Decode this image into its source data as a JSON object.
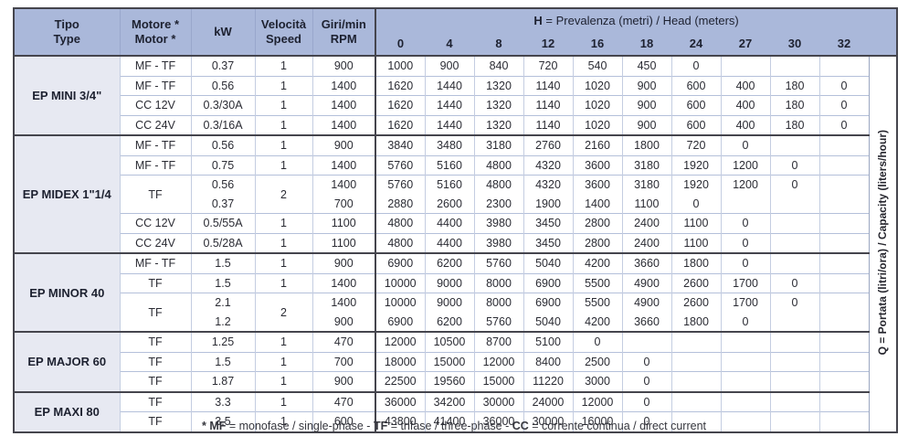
{
  "colors": {
    "header_blue": "#aab8da",
    "group_column_bg": "#e7e9f2",
    "grid_light": "#b4c0da",
    "grid_dark": "#45454d",
    "text": "#2b2c34"
  },
  "table": {
    "header": {
      "tipo": {
        "l1": "Tipo",
        "l2": "Type"
      },
      "motor": {
        "l1": "Motore *",
        "l2": "Motor *"
      },
      "kw": "kW",
      "speed": {
        "l1": "Velocità",
        "l2": "Speed"
      },
      "rpm": {
        "l1": "Giri/min",
        "l2": "RPM"
      },
      "h_bold": "H",
      "h_rest": " = Prevalenza (metri) / Head (meters)",
      "h_columns": [
        "0",
        "4",
        "8",
        "12",
        "16",
        "18",
        "24",
        "27",
        "30",
        "32"
      ]
    },
    "q_label": "Q = Portata (litri/ora) / Capacity (liters/hour)",
    "groups": [
      {
        "name": "EP MINI 3/4\"",
        "rows": [
          {
            "motor": "MF - TF",
            "kw": [
              "0.37"
            ],
            "speed": "1",
            "rpm": [
              "900"
            ],
            "h": [
              [
                "1000",
                "900",
                "840",
                "720",
                "540",
                "450",
                "0",
                "",
                "",
                ""
              ]
            ]
          },
          {
            "motor": "MF - TF",
            "kw": [
              "0.56"
            ],
            "speed": "1",
            "rpm": [
              "1400"
            ],
            "h": [
              [
                "1620",
                "1440",
                "1320",
                "1140",
                "1020",
                "900",
                "600",
                "400",
                "180",
                "0"
              ]
            ]
          },
          {
            "motor": "CC 12V",
            "kw": [
              "0.3/30A"
            ],
            "speed": "1",
            "rpm": [
              "1400"
            ],
            "h": [
              [
                "1620",
                "1440",
                "1320",
                "1140",
                "1020",
                "900",
                "600",
                "400",
                "180",
                "0"
              ]
            ]
          },
          {
            "motor": "CC 24V",
            "kw": [
              "0.3/16A"
            ],
            "speed": "1",
            "rpm": [
              "1400"
            ],
            "h": [
              [
                "1620",
                "1440",
                "1320",
                "1140",
                "1020",
                "900",
                "600",
                "400",
                "180",
                "0"
              ]
            ]
          }
        ]
      },
      {
        "name": "EP MIDEX 1\"1/4",
        "rows": [
          {
            "motor": "MF - TF",
            "kw": [
              "0.56"
            ],
            "speed": "1",
            "rpm": [
              "900"
            ],
            "h": [
              [
                "3840",
                "3480",
                "3180",
                "2760",
                "2160",
                "1800",
                "720",
                "0",
                "",
                ""
              ]
            ]
          },
          {
            "motor": "MF - TF",
            "kw": [
              "0.75"
            ],
            "speed": "1",
            "rpm": [
              "1400"
            ],
            "h": [
              [
                "5760",
                "5160",
                "4800",
                "4320",
                "3600",
                "3180",
                "1920",
                "1200",
                "0",
                ""
              ]
            ]
          },
          {
            "motor": "TF",
            "kw": [
              "0.56",
              "0.37"
            ],
            "speed": "2",
            "rpm": [
              "1400",
              "700"
            ],
            "h": [
              [
                "5760",
                "5160",
                "4800",
                "4320",
                "3600",
                "3180",
                "1920",
                "1200",
                "0",
                ""
              ],
              [
                "2880",
                "2600",
                "2300",
                "1900",
                "1400",
                "1100",
                "0",
                "",
                "",
                ""
              ]
            ]
          },
          {
            "motor": "CC 12V",
            "kw": [
              "0.5/55A"
            ],
            "speed": "1",
            "rpm": [
              "1100"
            ],
            "h": [
              [
                "4800",
                "4400",
                "3980",
                "3450",
                "2800",
                "2400",
                "1100",
                "0",
                "",
                ""
              ]
            ]
          },
          {
            "motor": "CC 24V",
            "kw": [
              "0.5/28A"
            ],
            "speed": "1",
            "rpm": [
              "1100"
            ],
            "h": [
              [
                "4800",
                "4400",
                "3980",
                "3450",
                "2800",
                "2400",
                "1100",
                "0",
                "",
                ""
              ]
            ]
          }
        ]
      },
      {
        "name": "EP MINOR 40",
        "rows": [
          {
            "motor": "MF - TF",
            "kw": [
              "1.5"
            ],
            "speed": "1",
            "rpm": [
              "900"
            ],
            "h": [
              [
                "6900",
                "6200",
                "5760",
                "5040",
                "4200",
                "3660",
                "1800",
                "0",
                "",
                ""
              ]
            ]
          },
          {
            "motor": "TF",
            "kw": [
              "1.5"
            ],
            "speed": "1",
            "rpm": [
              "1400"
            ],
            "h": [
              [
                "10000",
                "9000",
                "8000",
                "6900",
                "5500",
                "4900",
                "2600",
                "1700",
                "0",
                ""
              ]
            ]
          },
          {
            "motor": "TF",
            "kw": [
              "2.1",
              "1.2"
            ],
            "speed": "2",
            "rpm": [
              "1400",
              "900"
            ],
            "h": [
              [
                "10000",
                "9000",
                "8000",
                "6900",
                "5500",
                "4900",
                "2600",
                "1700",
                "0",
                ""
              ],
              [
                "6900",
                "6200",
                "5760",
                "5040",
                "4200",
                "3660",
                "1800",
                "0",
                "",
                ""
              ]
            ]
          }
        ]
      },
      {
        "name": "EP MAJOR 60",
        "rows": [
          {
            "motor": "TF",
            "kw": [
              "1.25"
            ],
            "speed": "1",
            "rpm": [
              "470"
            ],
            "h": [
              [
                "12000",
                "10500",
                "8700",
                "5100",
                "0",
                "",
                "",
                "",
                "",
                ""
              ]
            ]
          },
          {
            "motor": "TF",
            "kw": [
              "1.5"
            ],
            "speed": "1",
            "rpm": [
              "700"
            ],
            "h": [
              [
                "18000",
                "15000",
                "12000",
                "8400",
                "2500",
                "0",
                "",
                "",
                "",
                ""
              ]
            ]
          },
          {
            "motor": "TF",
            "kw": [
              "1.87"
            ],
            "speed": "1",
            "rpm": [
              "900"
            ],
            "h": [
              [
                "22500",
                "19560",
                "15000",
                "11220",
                "3000",
                "0",
                "",
                "",
                "",
                ""
              ]
            ]
          }
        ]
      },
      {
        "name": "EP MAXI 80",
        "rows": [
          {
            "motor": "TF",
            "kw": [
              "3.3"
            ],
            "speed": "1",
            "rpm": [
              "470"
            ],
            "h": [
              [
                "36000",
                "34200",
                "30000",
                "24000",
                "12000",
                "0",
                "",
                "",
                "",
                ""
              ]
            ]
          },
          {
            "motor": "TF",
            "kw": [
              "3.5"
            ],
            "speed": "1",
            "rpm": [
              "600"
            ],
            "h": [
              [
                "43800",
                "41400",
                "36000",
                "30000",
                "16000",
                "0",
                "",
                "",
                "",
                ""
              ]
            ]
          }
        ]
      }
    ]
  },
  "footnote": [
    {
      "text": "* MF",
      "bold": true
    },
    {
      "text": " = monofase / single-phase - ",
      "bold": false
    },
    {
      "text": "TF",
      "bold": true
    },
    {
      "text": " = trifase / three-phase - ",
      "bold": false
    },
    {
      "text": "CC",
      "bold": true
    },
    {
      "text": " = corrente continua / direct current",
      "bold": false
    }
  ]
}
